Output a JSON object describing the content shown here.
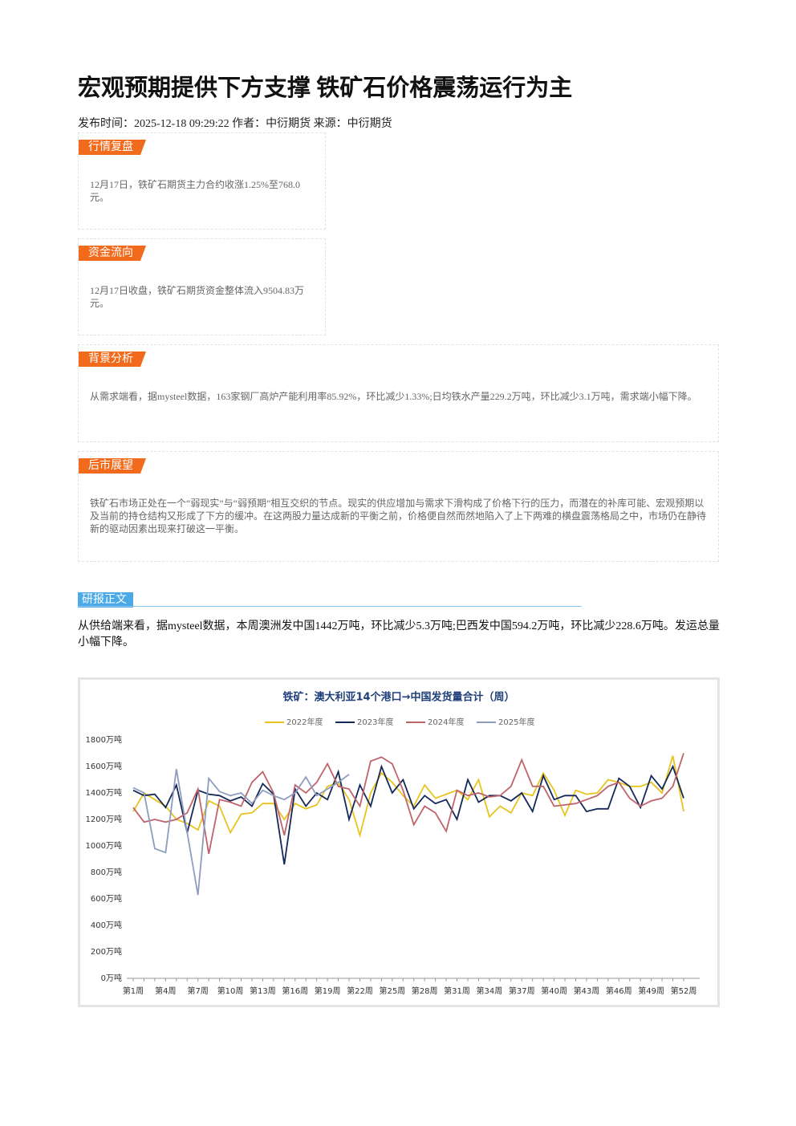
{
  "header": {
    "title": "宏观预期提供下方支撑 铁矿石价格震荡运行为主",
    "meta": "发布时间：2025-12-18 09:29:22 作者：中衍期货 来源：中衍期货"
  },
  "sections": [
    {
      "tag": "行情复盘",
      "text": "12月17日，铁矿石期货主力合约收涨1.25%至768.0元。"
    },
    {
      "tag": "资金流向",
      "text": "12月17日收盘，铁矿石期货资金整体流入9504.83万元。"
    },
    {
      "tag": "背景分析",
      "text": "从需求端看，据mysteel数据，163家钢厂高炉产能利用率85.92%，环比减少1.33%;日均铁水产量229.2万吨，环比减少3.1万吨，需求端小幅下降。"
    },
    {
      "tag": "后市展望",
      "text": "铁矿石市场正处在一个“弱现实”与“弱预期”相互交织的节点。现实的供应增加与需求下滑构成了价格下行的压力，而潜在的补库可能、宏观预期以及当前的持仓结构又形成了下方的缓冲。在这两股力量达成新的平衡之前，价格便自然而然地陷入了上下两难的横盘震荡格局之中，市场仍在静待新的驱动因素出现来打破这一平衡。"
    }
  ],
  "body": {
    "tag": "研报正文",
    "text": "从供给端来看，据mysteel数据，本周澳洲发中国1442万吨，环比减少5.3万吨;巴西发中国594.2万吨，环比减少228.6万吨。发运总量小幅下降。"
  },
  "chart_data": {
    "type": "line",
    "title": "铁矿：澳大利亚14个港口→中国发货量合计（周）",
    "legend": "top",
    "grid": false,
    "categories": [
      "第1周",
      null,
      null,
      "第4周",
      null,
      null,
      "第7周",
      null,
      null,
      "第10周",
      null,
      null,
      "第13周",
      null,
      null,
      "第16周",
      null,
      null,
      "第19周",
      null,
      null,
      "第22周",
      null,
      null,
      "第25周",
      null,
      null,
      "第28周",
      null,
      null,
      "第31周",
      null,
      null,
      "第34周",
      null,
      null,
      "第37周",
      null,
      null,
      "第40周",
      null,
      null,
      "第43周",
      null,
      null,
      "第46周",
      null,
      null,
      "第49周",
      null,
      null,
      "第52周"
    ],
    "ylim": [
      0,
      1800
    ],
    "yticks": [
      {
        "value": 0,
        "label": "0万吨"
      },
      {
        "value": 200,
        "label": "200万吨"
      },
      {
        "value": 400,
        "label": "400万吨"
      },
      {
        "value": 600,
        "label": "600万吨"
      },
      {
        "value": 800,
        "label": "800万吨"
      },
      {
        "value": 1000,
        "label": "1000万吨"
      },
      {
        "value": 1200,
        "label": "1200万吨"
      },
      {
        "value": 1400,
        "label": "1400万吨"
      },
      {
        "value": 1600,
        "label": "1600万吨"
      },
      {
        "value": 1800,
        "label": "1800万吨"
      }
    ],
    "series": [
      {
        "name": "2022年度",
        "color": "#e8c31e",
        "values": [
          1260,
          1400,
          1350,
          1300,
          1200,
          1170,
          1120,
          1340,
          1300,
          1100,
          1240,
          1250,
          1320,
          1320,
          1200,
          1320,
          1280,
          1310,
          1450,
          1480,
          1350,
          1080,
          1400,
          1550,
          1480,
          1380,
          1300,
          1460,
          1360,
          1390,
          1420,
          1350,
          1500,
          1220,
          1300,
          1250,
          1400,
          1380,
          1550,
          1420,
          1230,
          1420,
          1390,
          1400,
          1500,
          1480,
          1450,
          1450,
          1480,
          1400,
          1680,
          1260
        ]
      },
      {
        "name": "2023年度",
        "color": "#14285a",
        "values": [
          1420,
          1380,
          1390,
          1290,
          1460,
          1100,
          1420,
          1390,
          1380,
          1340,
          1370,
          1300,
          1470,
          1390,
          860,
          1430,
          1300,
          1400,
          1350,
          1560,
          1200,
          1460,
          1300,
          1600,
          1400,
          1500,
          1280,
          1380,
          1320,
          1350,
          1200,
          1500,
          1330,
          1380,
          1380,
          1340,
          1400,
          1260,
          1530,
          1350,
          1380,
          1380,
          1260,
          1280,
          1280,
          1510,
          1450,
          1290,
          1530,
          1430,
          1600,
          1360
        ]
      },
      {
        "name": "2024年度",
        "color": "#c0646b",
        "values": [
          1290,
          1180,
          1200,
          1180,
          1200,
          1250,
          1430,
          940,
          1350,
          1330,
          1300,
          1480,
          1560,
          1400,
          1080,
          1460,
          1400,
          1480,
          1620,
          1450,
          1430,
          1300,
          1640,
          1670,
          1620,
          1420,
          1160,
          1300,
          1250,
          1110,
          1420,
          1380,
          1400,
          1370,
          1380,
          1450,
          1650,
          1450,
          1450,
          1300,
          1310,
          1320,
          1350,
          1380,
          1450,
          1480,
          1360,
          1300,
          1340,
          1360,
          1450,
          1700
        ]
      },
      {
        "name": "2025年度",
        "color": "#8d9dbf",
        "values": [
          1440,
          1400,
          980,
          950,
          1580,
          1100,
          630,
          1510,
          1410,
          1380,
          1400,
          1320,
          1420,
          1380,
          1350,
          1400,
          1520,
          1380,
          1430,
          1480,
          1540,
          null,
          null,
          null,
          null,
          null,
          null,
          null,
          null,
          null,
          null,
          null,
          null,
          null,
          null,
          null,
          null,
          null,
          null,
          null,
          null,
          null,
          null,
          null,
          null,
          null,
          null,
          null,
          null,
          null,
          null,
          null
        ]
      }
    ]
  }
}
